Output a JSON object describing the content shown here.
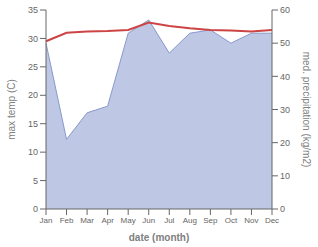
{
  "chart_data": {
    "type": "line",
    "xlabel": "date (month)",
    "ylabel": "max temp (C)",
    "y2label": "med. precipitation (kg/m2)",
    "categories": [
      "Jan",
      "Feb",
      "Mar",
      "Apr",
      "May",
      "Jun",
      "Jul",
      "Aug",
      "Sep",
      "Oct",
      "Nov",
      "Dec"
    ],
    "series": [
      {
        "type": "area",
        "axis": "y2",
        "color": "#8899cc",
        "values": [
          50.0,
          21.0,
          29.0,
          31.0,
          53.0,
          57.0,
          47.0,
          53.0,
          54.0,
          50.0,
          53.0,
          53.0
        ]
      },
      {
        "type": "line",
        "color": "#cc4444",
        "values": [
          29.5,
          31.0,
          31.2,
          31.3,
          31.5,
          32.8,
          32.2,
          31.8,
          31.5,
          31.4,
          31.2,
          31.5
        ]
      }
    ],
    "ylim": [
      0,
      35
    ],
    "yticks": [
      0,
      5,
      10,
      15,
      20,
      25,
      30,
      35
    ],
    "y2lim": [
      0,
      60
    ],
    "y2ticks": [
      0,
      10,
      20,
      30,
      40,
      50,
      60
    ],
    "grid": false
  }
}
